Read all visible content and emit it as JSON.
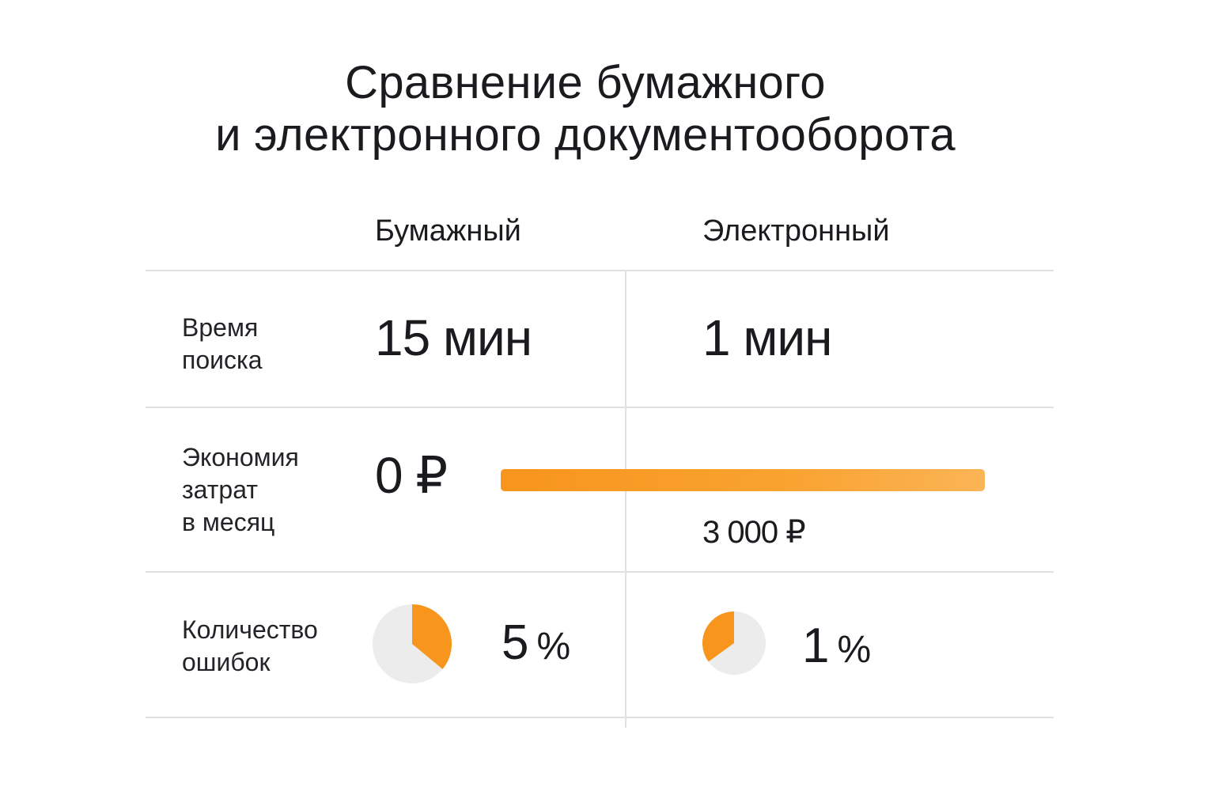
{
  "title_lines": [
    "Сравнение бумажного",
    "и электронного документооборота"
  ],
  "columns": [
    "Бумажный",
    "Электронный"
  ],
  "rows": {
    "search_time": {
      "label_lines": [
        "Время",
        "поиска"
      ],
      "paper": "15 мин",
      "electronic": "1 мин"
    },
    "savings": {
      "label_lines": [
        "Экономия",
        "затрат",
        "в месяц"
      ],
      "paper": "0 ₽",
      "electronic": "3 000 ₽"
    },
    "errors": {
      "label_lines": [
        "Количество",
        "ошибок"
      ],
      "paper_value": "5",
      "electronic_value": "1",
      "unit": "%"
    }
  },
  "colors": {
    "accent": "#f7951d",
    "pie_background": "#ececec",
    "grid": "#e1e1e3",
    "text": "#1b1b1f"
  },
  "chart_data": {
    "type": "table",
    "title": "Сравнение бумажного и электронного документооборота",
    "categories": [
      "Время поиска",
      "Экономия затрат в месяц",
      "Количество ошибок"
    ],
    "series": [
      {
        "name": "Бумажный",
        "values": [
          "15 мин",
          "0 ₽",
          "5 %"
        ]
      },
      {
        "name": "Электронный",
        "values": [
          "1 мин",
          "3 000 ₽",
          "1 %"
        ]
      }
    ],
    "savings_bar": {
      "value": 3000,
      "unit": "₽"
    },
    "error_pies": [
      {
        "name": "Бумажный",
        "filled_fraction": 0.36
      },
      {
        "name": "Электронный",
        "filled_fraction": 0.35
      }
    ]
  }
}
